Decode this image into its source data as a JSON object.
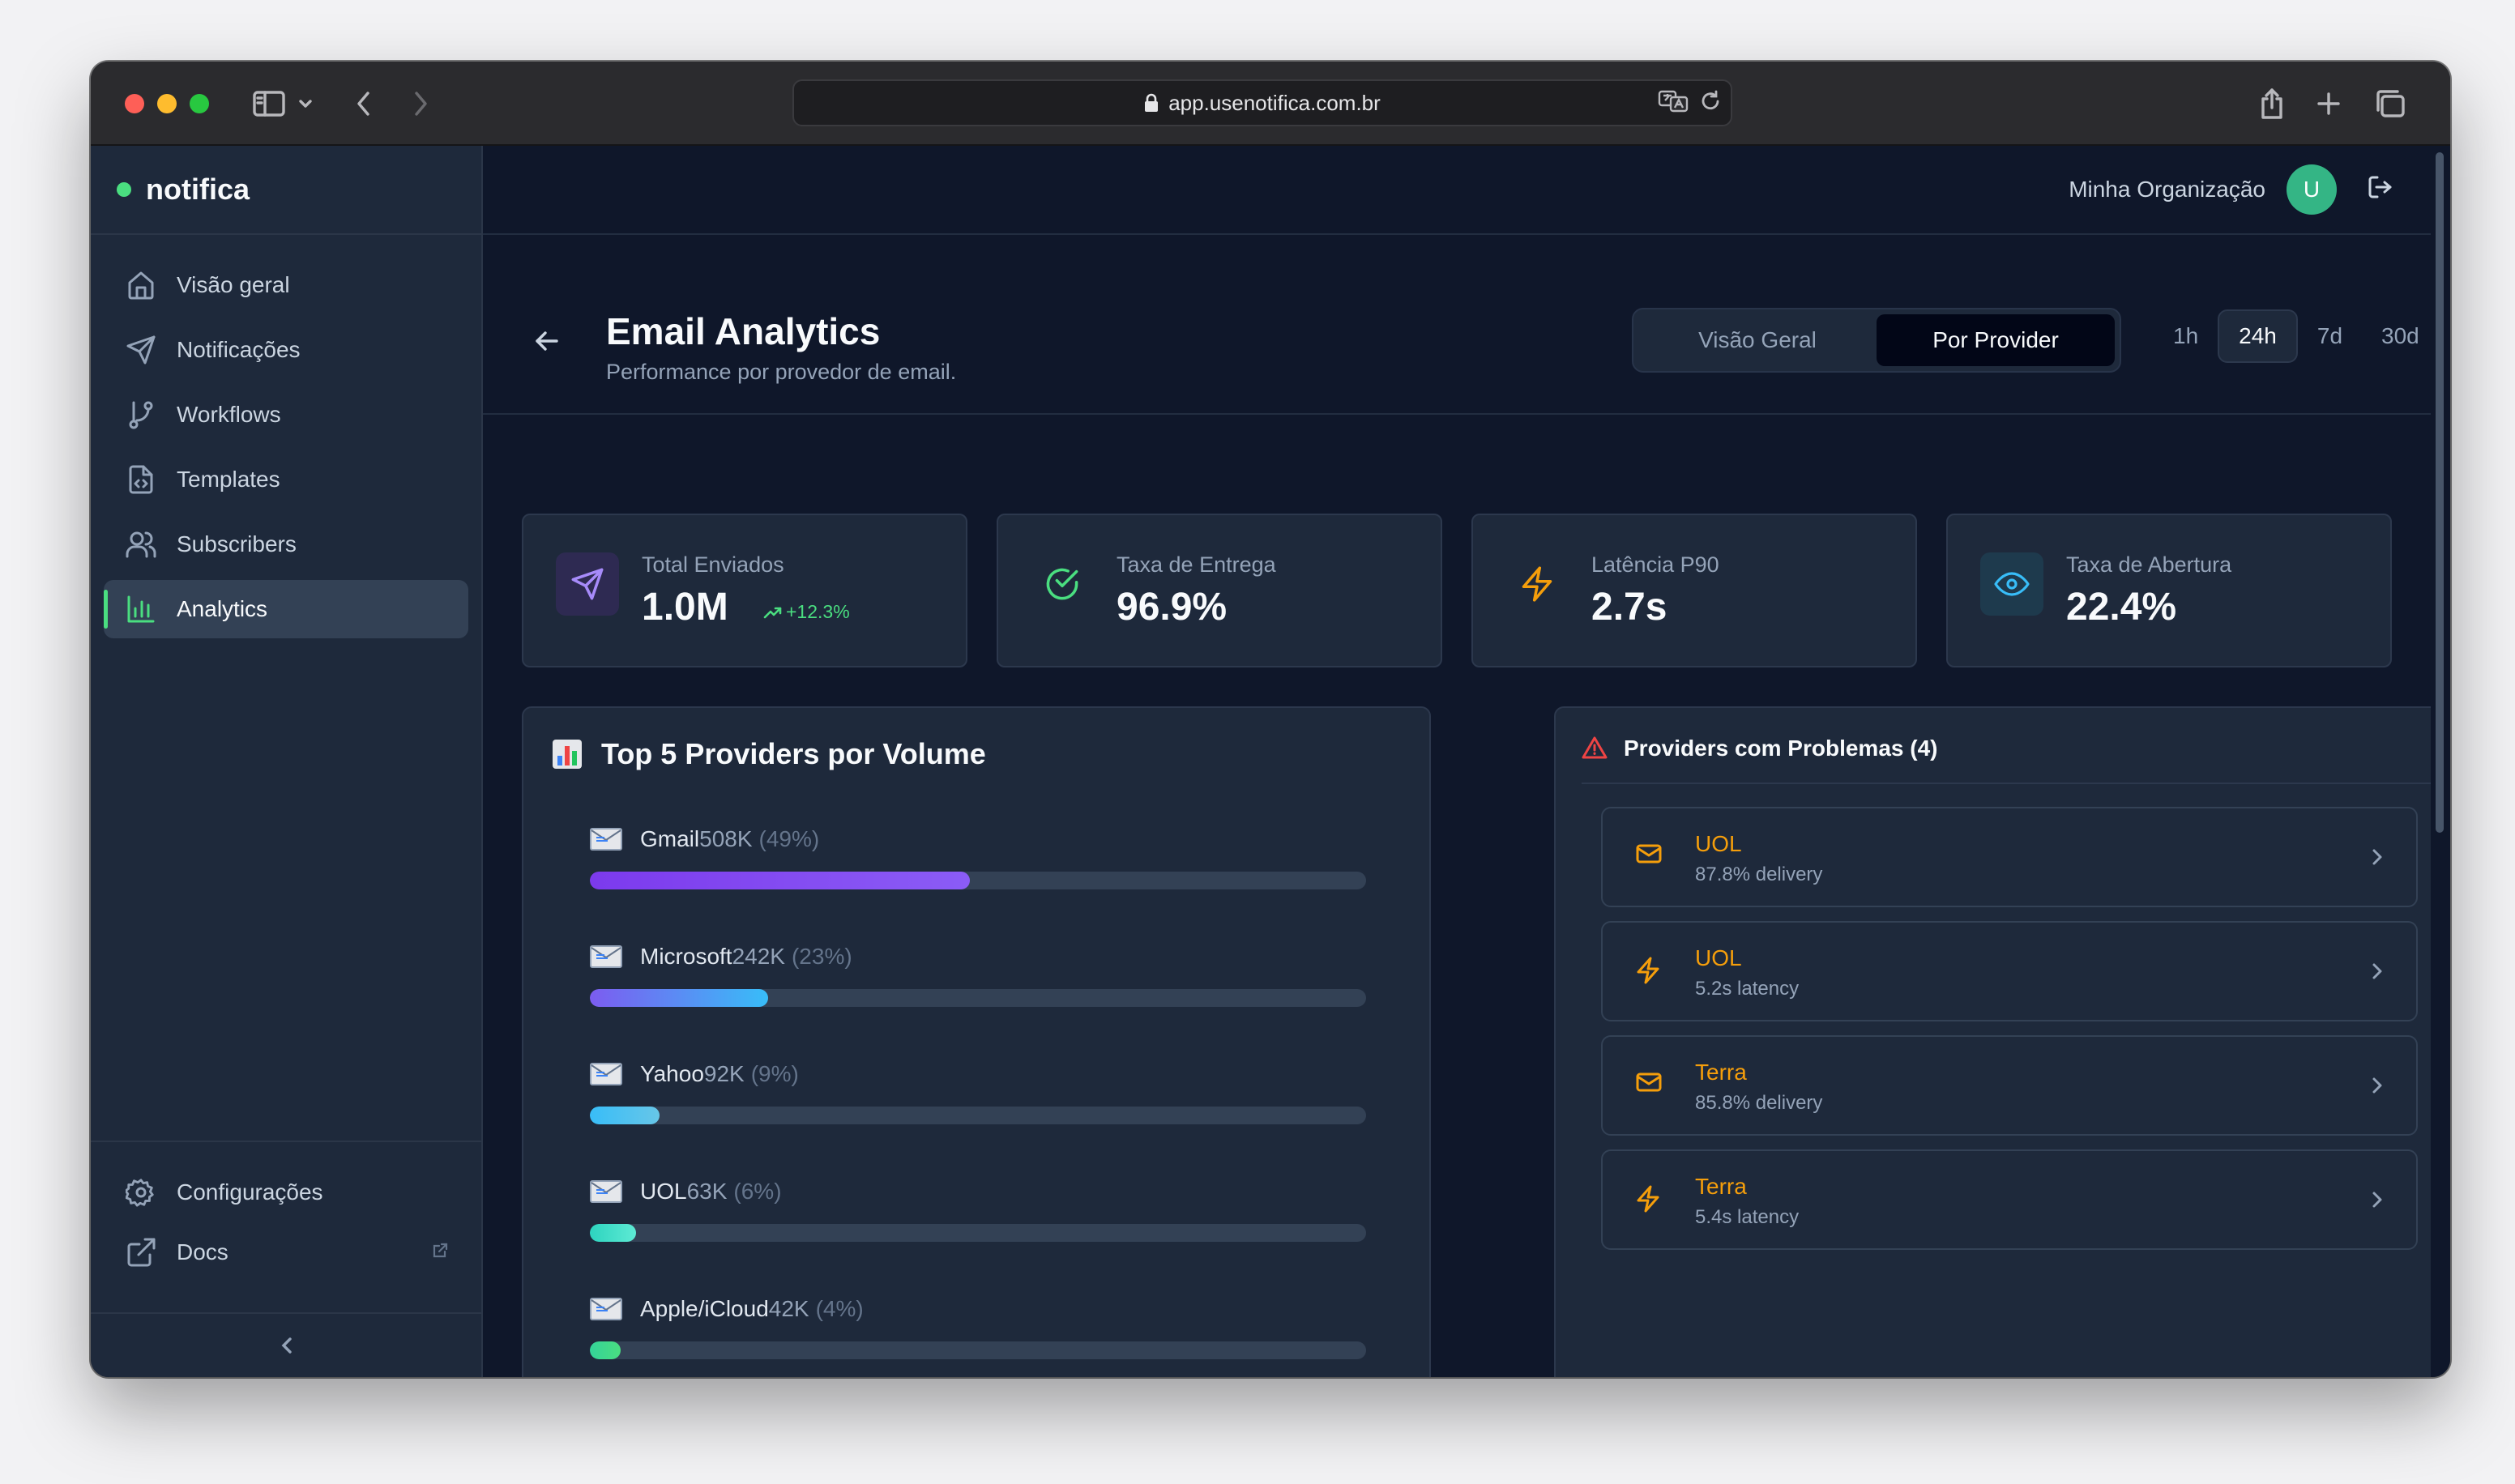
{
  "browser": {
    "url": "app.usenotifica.com.br"
  },
  "sidebar": {
    "brand": "notifica",
    "items": [
      {
        "label": "Visão geral",
        "icon": "home-icon"
      },
      {
        "label": "Notificações",
        "icon": "send-icon"
      },
      {
        "label": "Workflows",
        "icon": "git-branch-icon"
      },
      {
        "label": "Templates",
        "icon": "file-code-icon"
      },
      {
        "label": "Subscribers",
        "icon": "users-icon"
      },
      {
        "label": "Analytics",
        "icon": "bar-chart-icon",
        "active": true
      }
    ],
    "bottom": [
      {
        "label": "Configurações",
        "icon": "gear-icon"
      },
      {
        "label": "Docs",
        "icon": "external-link-icon"
      }
    ]
  },
  "topbar": {
    "organization": "Minha Organização",
    "avatar_initial": "U"
  },
  "header": {
    "title": "Email Analytics",
    "subtitle": "Performance por provedor de email.",
    "views": [
      "Visão Geral",
      "Por Provider"
    ],
    "active_view": "Por Provider",
    "ranges": [
      "1h",
      "24h",
      "7d",
      "30d"
    ],
    "active_range": "24h"
  },
  "stats": [
    {
      "label": "Total Enviados",
      "value": "1.0M",
      "trend": "+12.3%",
      "icon": "send-icon",
      "color": "#a78bfa"
    },
    {
      "label": "Taxa de Entrega",
      "value": "96.9%",
      "icon": "check-circle-icon",
      "color": "#4ade80"
    },
    {
      "label": "Latência P90",
      "value": "2.7s",
      "icon": "zap-icon",
      "color": "#f59e0b"
    },
    {
      "label": "Taxa de Abertura",
      "value": "22.4%",
      "icon": "eye-icon",
      "color": "#38bdf8"
    }
  ],
  "providers_panel": {
    "title": "Top 5 Providers por Volume",
    "providers": [
      {
        "name": "Gmail",
        "volume": "508K",
        "pct_label": "(49%)",
        "share": 49,
        "colors": [
          "#7c3aed",
          "#8b5cf6"
        ]
      },
      {
        "name": "Microsoft",
        "volume": "242K",
        "pct_label": "(23%)",
        "share": 23,
        "colors": [
          "#7c5cf0",
          "#38bdf8"
        ]
      },
      {
        "name": "Yahoo",
        "volume": "92K",
        "pct_label": "(9%)",
        "share": 9,
        "colors": [
          "#38bdf8",
          "#67c6e8"
        ]
      },
      {
        "name": "UOL",
        "volume": "63K",
        "pct_label": "(6%)",
        "share": 6,
        "colors": [
          "#2dd4bf",
          "#5eead4"
        ]
      },
      {
        "name": "Apple/iCloud",
        "volume": "42K",
        "pct_label": "(4%)",
        "share": 4,
        "colors": [
          "#34d399",
          "#4ade80"
        ]
      }
    ]
  },
  "issues_panel": {
    "title": "Providers com Problemas (4)",
    "issues": [
      {
        "name": "UOL",
        "detail": "87.8% delivery",
        "icon": "mail-icon"
      },
      {
        "name": "UOL",
        "detail": "5.2s latency",
        "icon": "zap-icon"
      },
      {
        "name": "Terra",
        "detail": "85.8% delivery",
        "icon": "mail-icon"
      },
      {
        "name": "Terra",
        "detail": "5.4s latency",
        "icon": "zap-icon"
      }
    ]
  }
}
